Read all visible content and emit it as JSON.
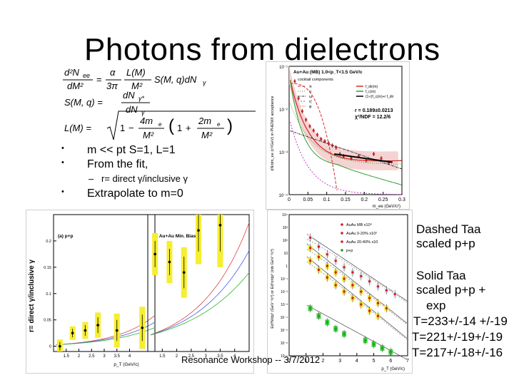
{
  "slide": {
    "title": "Photons from dielectrons",
    "bullets": [
      {
        "marker": "•",
        "text": "m << pt  S=1, L=1"
      },
      {
        "marker": "•",
        "text": "From the fit,"
      },
      {
        "marker": "–",
        "text": "r= direct γ/inclusive γ"
      },
      {
        "marker": "•",
        "text": "Extrapolate to m=0"
      }
    ],
    "notes": {
      "dashed": [
        "Dashed Taa",
        "scaled p+p"
      ],
      "solid": [
        "Solid Taa",
        "scaled p+p +",
        "exp",
        "T=233+/-14 +/-19",
        "T=221+/-19+/-19",
        "T=217+/-18+/-16"
      ]
    },
    "footer": "Resonance Workshop -- 3/7/2012"
  },
  "equations": {
    "eq1_lhs_num": "d²N",
    "eq1_lhs_num_sub": "ee",
    "eq1_lhs_den": "dM²",
    "eq1_rhs": "S(M, q)dN",
    "eq2_lhs": "S(M, q) =",
    "eq3_lhs": "L(M) =",
    "alpha": "α",
    "three_pi": "3π",
    "lm": "L(M)",
    "m2": "M²",
    "gamma": "γ",
    "dn_num": "dN",
    "dn_den": "dN",
    "sub_gstar": "γ*",
    "sub_g": "γ",
    "one": "1",
    "minus": "−",
    "plus": "+",
    "four_me2": "4m",
    "two_me2": "2m",
    "sub_e": "e",
    "eq": "="
  },
  "chart_data": [
    {
      "type": "line",
      "title": "Au+Au (MB) 1.0<p_T<1.5 GeV/c",
      "subtitle": "cocktail components",
      "xlabel": "m_ee (GeV/c²)",
      "ylabel": "dN/dm_ee (c²/GeV) in PHENIX acceptance",
      "x_ticks": [
        "0",
        "0.05",
        "0.1",
        "0.15",
        "0.2",
        "0.25",
        "0.3"
      ],
      "y_ticks": [
        "10⁻¹",
        "10⁻²",
        "10⁻³",
        "10⁻⁴"
      ],
      "legend": [
        "π",
        "η",
        "ω",
        "η'",
        "φ"
      ],
      "legend_fit": [
        "f_dir(m)",
        "f_c(m)",
        "(1-r)f_c(m)+r f_dir"
      ],
      "fit_text": [
        "r = 0.189±0.0213",
        "χ²/NDF = 12.2/6"
      ],
      "legend_position": "right",
      "xlim": [
        0,
        0.3
      ],
      "ylim_log10": [
        -4,
        -1
      ],
      "data": [
        {
          "x": 0.015,
          "y_log10": -1.35
        },
        {
          "x": 0.025,
          "y_log10": -1.75
        },
        {
          "x": 0.035,
          "y_log10": -2.05
        },
        {
          "x": 0.045,
          "y_log10": -2.25
        },
        {
          "x": 0.055,
          "y_log10": -2.4
        },
        {
          "x": 0.065,
          "y_log10": -2.5
        },
        {
          "x": 0.075,
          "y_log10": -2.6
        },
        {
          "x": 0.085,
          "y_log10": -2.7
        },
        {
          "x": 0.095,
          "y_log10": -2.75
        },
        {
          "x": 0.105,
          "y_log10": -2.8
        },
        {
          "x": 0.115,
          "y_log10": -2.85
        },
        {
          "x": 0.125,
          "y_log10": -2.9
        },
        {
          "x": 0.135,
          "y_log10": -3.05
        },
        {
          "x": 0.145,
          "y_log10": -3.1
        },
        {
          "x": 0.165,
          "y_log10": -3.15
        },
        {
          "x": 0.185,
          "y_log10": -3.1
        },
        {
          "x": 0.205,
          "y_log10": -3.2
        },
        {
          "x": 0.225,
          "y_log10": -3.05
        },
        {
          "x": 0.245,
          "y_log10": -3.15
        },
        {
          "x": 0.265,
          "y_log10": -3.25
        }
      ]
    },
    {
      "type": "scatter",
      "ylabel": "r= direct γ/inclusive γ",
      "xlabel": "p_T (GeV/c)",
      "panel_labels": [
        "(a) p+p",
        "(b) Au+Au Min. Bias"
      ],
      "panel_a": {
        "x_ticks": [
          "1.5",
          "2",
          "2.5",
          "3",
          "3.5",
          "4"
        ],
        "y_ticks": [
          "0",
          "0.05",
          "0.1",
          "0.15",
          "0.2"
        ],
        "xlim": [
          1.0,
          5.0
        ],
        "ylim": [
          -0.01,
          0.25
        ],
        "points": [
          {
            "x": 1.25,
            "y": 0.0,
            "err": 0.008
          },
          {
            "x": 1.75,
            "y": 0.025,
            "err": 0.008
          },
          {
            "x": 2.25,
            "y": 0.03,
            "err": 0.01
          },
          {
            "x": 2.75,
            "y": 0.04,
            "err": 0.015
          },
          {
            "x": 3.5,
            "y": 0.03,
            "err": 0.02
          },
          {
            "x": 4.5,
            "y": 0.035,
            "err": 0.025
          }
        ]
      },
      "panel_b": {
        "x_ticks": [
          "1.5",
          "2",
          "2.5",
          "3",
          "3.5",
          "4"
        ],
        "xlim": [
          1.0,
          4.5
        ],
        "ylim": [
          -0.01,
          0.25
        ],
        "points": [
          {
            "x": 1.25,
            "y": 0.175,
            "err": 0.025
          },
          {
            "x": 1.75,
            "y": 0.16,
            "err": 0.025
          },
          {
            "x": 2.25,
            "y": 0.14,
            "err": 0.03
          },
          {
            "x": 2.75,
            "y": 0.22,
            "err": 0.04
          },
          {
            "x": 3.5,
            "y": 0.23,
            "err": 0.05
          }
        ]
      }
    },
    {
      "type": "scatter",
      "ylabel": "Ed³N/dp³ (GeV⁻²c³) or Ed³σ/dp³ (mb GeV⁻²c³)",
      "xlabel": "p_T (GeV/c)",
      "legend": [
        "AuAu MB x10⁴",
        "AuAu 0-20% x10²",
        "AuAu 20-40% x10",
        "p+p"
      ],
      "legend_position": "top-right",
      "x_ticks": [
        "0",
        "1",
        "2",
        "3",
        "4",
        "5",
        "6",
        "7"
      ],
      "y_ticks": [
        "10⁴",
        "10³",
        "10²",
        "10",
        "1",
        "10⁻¹",
        "10⁻²",
        "10⁻³",
        "10⁻⁴",
        "10⁻⁵",
        "10⁻⁶",
        "10⁻⁷"
      ],
      "xlim": [
        0,
        7
      ],
      "ylim_log10": [
        -7,
        4
      ],
      "series": [
        {
          "name": "AuAu MB x10⁴",
          "points": [
            [
              1.25,
              2.2
            ],
            [
              1.75,
              1.5
            ],
            [
              2.25,
              0.9
            ],
            [
              2.75,
              0.4
            ],
            [
              3.25,
              -0.1
            ],
            [
              3.75,
              -0.5
            ],
            [
              4.25,
              -0.8
            ],
            [
              4.75,
              -1.2
            ],
            [
              5.25,
              -1.6
            ],
            [
              5.75,
              -1.9
            ],
            [
              6.25,
              -2.2
            ]
          ]
        },
        {
          "name": "AuAu 0-20% x10²",
          "points": [
            [
              1.25,
              1.4
            ],
            [
              1.75,
              0.7
            ],
            [
              2.25,
              0.0
            ],
            [
              2.75,
              -0.5
            ],
            [
              3.25,
              -1.0
            ],
            [
              3.75,
              -1.5
            ],
            [
              4.25,
              -2.0
            ],
            [
              4.75,
              -2.5
            ],
            [
              5.25,
              -2.9
            ],
            [
              5.75,
              -3.3
            ]
          ]
        },
        {
          "name": "AuAu 20-40% x10",
          "points": [
            [
              1.25,
              0.4
            ],
            [
              1.75,
              -0.3
            ],
            [
              2.25,
              -0.9
            ],
            [
              2.75,
              -1.5
            ],
            [
              3.25,
              -2.0
            ],
            [
              3.75,
              -2.5
            ],
            [
              4.25,
              -3.0
            ],
            [
              4.75,
              -3.5
            ],
            [
              5.25,
              -3.9
            ]
          ]
        },
        {
          "name": "p+p",
          "points": [
            [
              1.25,
              -3.3
            ],
            [
              1.75,
              -3.9
            ],
            [
              2.25,
              -4.4
            ],
            [
              2.75,
              -4.9
            ],
            [
              3.25,
              -5.3
            ],
            [
              4.5,
              -5.8
            ],
            [
              5.0,
              -6.1
            ],
            [
              5.5,
              -6.4
            ],
            [
              6.0,
              -6.7
            ]
          ]
        }
      ]
    }
  ]
}
